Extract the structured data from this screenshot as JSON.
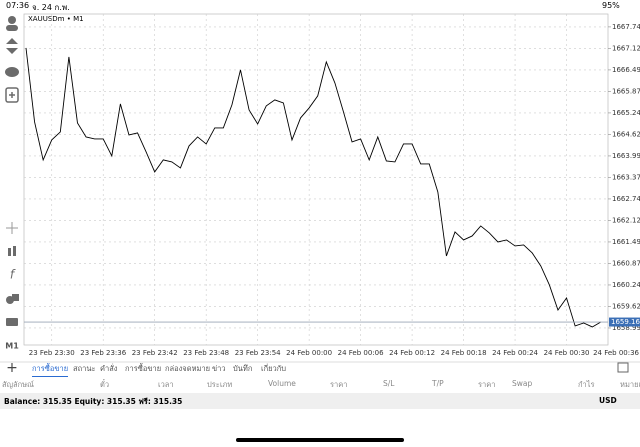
{
  "status_bar": {
    "time": "07:36",
    "date": "จ. 24 ก.พ.",
    "battery": "95%"
  },
  "chart_data": {
    "type": "line",
    "symbol": "XAUUSDm • M1",
    "color": "#000000",
    "grid": true,
    "categories": [
      null,
      null,
      null,
      "23 Feb 23:30",
      null,
      null,
      null,
      null,
      null,
      "23 Feb 23:36",
      null,
      null,
      null,
      null,
      null,
      "23 Feb 23:42",
      null,
      null,
      null,
      null,
      null,
      "23 Feb 23:48",
      null,
      null,
      null,
      null,
      null,
      "23 Feb 23:54",
      null,
      null,
      null,
      null,
      null,
      "24 Feb 00:00",
      null,
      null,
      null,
      null,
      null,
      "24 Feb 00:06",
      null,
      null,
      null,
      null,
      null,
      "24 Feb 00:12",
      null,
      null,
      null,
      null,
      null,
      "24 Feb 00:18",
      null,
      null,
      null,
      null,
      null,
      "24 Feb 00:24",
      null,
      null,
      null,
      null,
      null,
      "24 Feb 00:30",
      null,
      null,
      null,
      null,
      null,
      "24 Feb 00:36"
    ],
    "values": [
      1667.135,
      1664.983,
      1663.879,
      1664.46,
      1664.693,
      1666.873,
      1664.954,
      1664.547,
      1664.489,
      1664.489,
      1663.995,
      1665.507,
      1664.605,
      1664.664,
      1664.111,
      1663.53,
      1663.879,
      1663.821,
      1663.646,
      1664.286,
      1664.547,
      1664.344,
      1664.809,
      1664.809,
      1665.478,
      1666.495,
      1665.332,
      1664.925,
      1665.448,
      1665.623,
      1665.536,
      1664.46,
      1665.1,
      1665.39,
      1665.739,
      1666.728,
      1666.117,
      1665.274,
      1664.402,
      1664.489,
      1663.879,
      1664.547,
      1663.85,
      1663.821,
      1664.344,
      1664.344,
      1663.762,
      1663.762,
      1662.948,
      1661.088,
      1661.786,
      1661.553,
      1661.669,
      1661.96,
      1661.757,
      1661.495,
      1661.553,
      1661.379,
      1661.408,
      1661.175,
      1660.797,
      1660.245,
      1659.518,
      1659.867,
      1659.053,
      1659.14,
      1659.024,
      1659.169,
      null,
      null
    ],
    "ylim": [
      1658.5,
      1668.12
    ],
    "yticks": [
      1667.745,
      {
        "value": 1667.12,
        "label": "1667.120"
      },
      1666.495,
      {
        "value": 1665.87,
        "label": "1665.870"
      },
      1665.245,
      {
        "value": 1664.62,
        "label": "1664.620"
      },
      1663.995,
      {
        "value": 1663.37,
        "label": "1663.370"
      },
      1662.745,
      {
        "value": 1662.12,
        "label": "1662.120"
      },
      1661.495,
      {
        "value": 1660.87,
        "label": "1660.870"
      },
      1660.245,
      {
        "value": 1659.62,
        "label": "1659.620"
      },
      1658.995
    ],
    "price_line": 1659.167
  },
  "toolbar": {
    "timeframe": "M1"
  },
  "tabs": [
    "การซื้อขาย",
    "สถานะ",
    "คำสั่ง",
    "การซื้อขาย",
    "กล่องจดหมาย",
    "ข่าว",
    "บันทึก",
    "เกี่ยวกับ"
  ],
  "table": {
    "headers": [
      "สัญลักษณ์",
      "ตั๋ว",
      "เวลา",
      "ประเภท",
      "Volume",
      "ราคา",
      "S/L",
      "T/P",
      "ราคา",
      "Swap",
      "กำไร",
      "หมายเหตุ"
    ]
  },
  "footer": {
    "summary": "Balance: 315.35 Equity: 315.35 ฟรี: 315.35",
    "currency": "USD"
  }
}
